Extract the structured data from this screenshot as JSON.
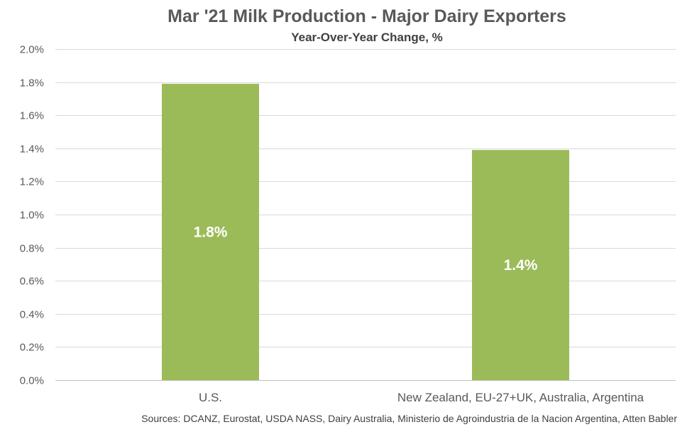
{
  "chart_data": {
    "type": "bar",
    "title": "Mar '21 Milk Production - Major Dairy Exporters",
    "subtitle": "Year-Over-Year Change, %",
    "categories": [
      "U.S.",
      "New Zealand, EU-27+UK, Australia, Argentina"
    ],
    "values": [
      1.79,
      1.39
    ],
    "data_labels": [
      "1.8%",
      "1.4%"
    ],
    "ylim": [
      0,
      2.0
    ],
    "yticks": [
      0.0,
      0.2,
      0.4,
      0.6,
      0.8,
      1.0,
      1.2,
      1.4,
      1.6,
      1.8,
      2.0
    ],
    "ytick_labels": [
      "0.0%",
      "0.2%",
      "0.4%",
      "0.6%",
      "0.8%",
      "1.0%",
      "1.2%",
      "1.4%",
      "1.6%",
      "1.8%",
      "2.0%"
    ],
    "grid": true,
    "legend": "none",
    "bar_color": "#9bbb59",
    "source": "Sources: DCANZ, Eurostat, USDA NASS, Dairy Australia, Ministerio de Agroindustria de la Nacion Argentina, Atten Babler"
  }
}
